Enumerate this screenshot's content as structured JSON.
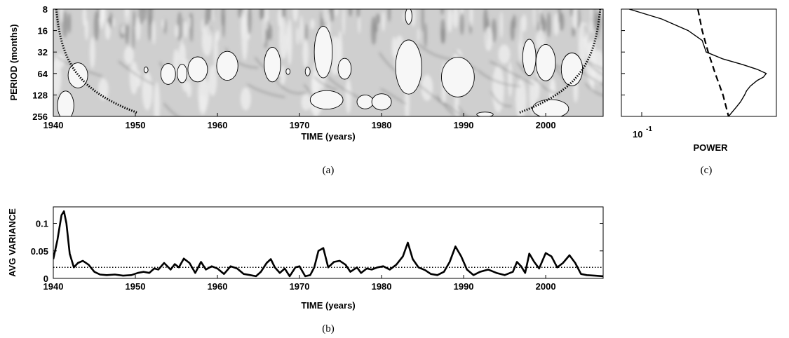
{
  "chart_data": [
    {
      "panel_label": "(a)",
      "type": "heatmap",
      "description_kind": "wavelet power spectrum",
      "xlabel": "TIME (years)",
      "ylabel": "PERIOD (months)",
      "xlim": [
        1940,
        2007
      ],
      "ylim": [
        8,
        256
      ],
      "y_scale": "log2",
      "x_ticks": [
        1940,
        1950,
        1960,
        1970,
        1980,
        1990,
        2000
      ],
      "y_ticks": [
        8,
        16,
        32,
        64,
        128,
        256
      ],
      "colormap": "grayscale",
      "significance_regions": [
        {
          "x_center": 1943.0,
          "period_center": 68,
          "x_halfwidth": 1.2,
          "period_factor": 1.5
        },
        {
          "x_center": 1941.5,
          "period_center": 180,
          "x_halfwidth": 1.0,
          "period_factor": 1.6
        },
        {
          "x_center": 1951.3,
          "period_center": 57,
          "x_halfwidth": 0.25,
          "period_factor": 1.1
        },
        {
          "x_center": 1954.0,
          "period_center": 65,
          "x_halfwidth": 0.9,
          "period_factor": 1.4
        },
        {
          "x_center": 1955.7,
          "period_center": 64,
          "x_halfwidth": 0.6,
          "period_factor": 1.35
        },
        {
          "x_center": 1957.6,
          "period_center": 56,
          "x_halfwidth": 1.2,
          "period_factor": 1.5
        },
        {
          "x_center": 1961.2,
          "period_center": 50,
          "x_halfwidth": 1.3,
          "period_factor": 1.6
        },
        {
          "x_center": 1966.7,
          "period_center": 48,
          "x_halfwidth": 1.0,
          "period_factor": 1.75
        },
        {
          "x_center": 1968.6,
          "period_center": 60,
          "x_halfwidth": 0.25,
          "period_factor": 1.1
        },
        {
          "x_center": 1971.0,
          "period_center": 60,
          "x_halfwidth": 0.3,
          "period_factor": 1.15
        },
        {
          "x_center": 1972.9,
          "period_center": 32,
          "x_halfwidth": 1.1,
          "period_factor": 2.3
        },
        {
          "x_center": 1973.3,
          "period_center": 150,
          "x_halfwidth": 2.0,
          "period_factor": 1.35
        },
        {
          "x_center": 1975.5,
          "period_center": 55,
          "x_halfwidth": 0.8,
          "period_factor": 1.4
        },
        {
          "x_center": 1978.0,
          "period_center": 160,
          "x_halfwidth": 1.0,
          "period_factor": 1.25
        },
        {
          "x_center": 1980.0,
          "period_center": 160,
          "x_halfwidth": 1.2,
          "period_factor": 1.3
        },
        {
          "x_center": 1983.3,
          "period_center": 52,
          "x_halfwidth": 1.6,
          "period_factor": 2.4
        },
        {
          "x_center": 1983.3,
          "period_center": 10,
          "x_halfwidth": 0.4,
          "period_factor": 1.3
        },
        {
          "x_center": 1989.3,
          "period_center": 72,
          "x_halfwidth": 2.0,
          "period_factor": 1.9
        },
        {
          "x_center": 1992.6,
          "period_center": 240,
          "x_halfwidth": 1.0,
          "period_factor": 1.08
        },
        {
          "x_center": 1998.0,
          "period_center": 38,
          "x_halfwidth": 0.8,
          "period_factor": 1.8
        },
        {
          "x_center": 2000.0,
          "period_center": 45,
          "x_halfwidth": 1.2,
          "period_factor": 1.8
        },
        {
          "x_center": 2003.2,
          "period_center": 56,
          "x_halfwidth": 1.3,
          "period_factor": 1.7
        },
        {
          "x_center": 2000.6,
          "period_center": 200,
          "x_halfwidth": 2.2,
          "period_factor": 1.35
        }
      ]
    },
    {
      "panel_label": "(c)",
      "type": "line",
      "xlabel": "POWER",
      "x_scale": "log",
      "x_tick_label": "10",
      "x_tick_exponent": "-1",
      "ylim": [
        8,
        256
      ],
      "y_scale": "log2",
      "series": [
        {
          "style": "solid",
          "periods": [
            8,
            11,
            16,
            22,
            32,
            40,
            48,
            56,
            64,
            72,
            80,
            96,
            112,
            128,
            160,
            192,
            256
          ],
          "power": [
            0.04,
            0.07,
            0.11,
            0.14,
            0.15,
            0.2,
            0.28,
            0.36,
            0.42,
            0.4,
            0.36,
            0.32,
            0.3,
            0.29,
            0.27,
            0.25,
            0.22
          ]
        },
        {
          "style": "dashed",
          "periods": [
            8,
            16,
            32,
            64,
            128,
            256
          ],
          "power": [
            0.13,
            0.14,
            0.155,
            0.175,
            0.2,
            0.22
          ]
        }
      ]
    },
    {
      "panel_label": "(b)",
      "type": "line",
      "xlabel": "TIME (years)",
      "ylabel": "AVG VARIANCE",
      "xlim": [
        1940,
        2007
      ],
      "ylim": [
        0,
        0.13
      ],
      "x_ticks": [
        1940,
        1950,
        1960,
        1970,
        1980,
        1990,
        2000
      ],
      "y_ticks": [
        0,
        0.05,
        0.1
      ],
      "y_tick_labels": [
        "0",
        "0.05",
        "0.1"
      ],
      "significance_level": 0.02,
      "series": [
        {
          "x": [
            1940,
            1940.5,
            1941,
            1941.3,
            1941.6,
            1942,
            1942.5,
            1943,
            1943.6,
            1944.3,
            1945,
            1945.7,
            1946.5,
            1947.5,
            1948.5,
            1949.5,
            1950.3,
            1951,
            1951.7,
            1952.3,
            1952.8,
            1953.5,
            1954.3,
            1954.8,
            1955.3,
            1955.9,
            1956.6,
            1957.3,
            1958,
            1958.6,
            1959.3,
            1960,
            1960.8,
            1961.6,
            1962.4,
            1963.2,
            1964,
            1964.7,
            1965.3,
            1966,
            1966.5,
            1967,
            1967.6,
            1968.2,
            1968.8,
            1969.5,
            1970,
            1970.7,
            1971.3,
            1971.8,
            1972.3,
            1972.9,
            1973.5,
            1974.2,
            1974.9,
            1975.6,
            1976.2,
            1977,
            1977.5,
            1978.2,
            1978.8,
            1979.5,
            1980.2,
            1981,
            1981.8,
            1982.6,
            1983.2,
            1983.8,
            1984.5,
            1985.3,
            1986,
            1986.8,
            1987.6,
            1988.3,
            1989,
            1989.7,
            1990.4,
            1991.2,
            1992,
            1993,
            1994,
            1995,
            1996,
            1996.5,
            1997,
            1997.5,
            1998,
            1998.6,
            1999.2,
            2000,
            2000.7,
            2001.4,
            2002.1,
            2002.9,
            2003.6,
            2004.3,
            2005,
            2006,
            2007
          ],
          "y": [
            0.035,
            0.07,
            0.115,
            0.122,
            0.1,
            0.045,
            0.02,
            0.028,
            0.032,
            0.025,
            0.012,
            0.007,
            0.006,
            0.007,
            0.005,
            0.006,
            0.01,
            0.012,
            0.01,
            0.018,
            0.016,
            0.028,
            0.016,
            0.026,
            0.02,
            0.036,
            0.028,
            0.01,
            0.03,
            0.016,
            0.022,
            0.018,
            0.008,
            0.022,
            0.018,
            0.008,
            0.006,
            0.004,
            0.012,
            0.028,
            0.035,
            0.02,
            0.01,
            0.018,
            0.004,
            0.02,
            0.022,
            0.004,
            0.006,
            0.02,
            0.05,
            0.055,
            0.02,
            0.03,
            0.032,
            0.025,
            0.012,
            0.02,
            0.01,
            0.018,
            0.016,
            0.02,
            0.022,
            0.016,
            0.025,
            0.04,
            0.065,
            0.035,
            0.02,
            0.015,
            0.008,
            0.006,
            0.012,
            0.03,
            0.058,
            0.04,
            0.016,
            0.006,
            0.012,
            0.016,
            0.01,
            0.006,
            0.012,
            0.03,
            0.022,
            0.01,
            0.045,
            0.03,
            0.018,
            0.046,
            0.04,
            0.02,
            0.028,
            0.042,
            0.028,
            0.008,
            0.006,
            0.005,
            0.004
          ]
        }
      ]
    }
  ]
}
